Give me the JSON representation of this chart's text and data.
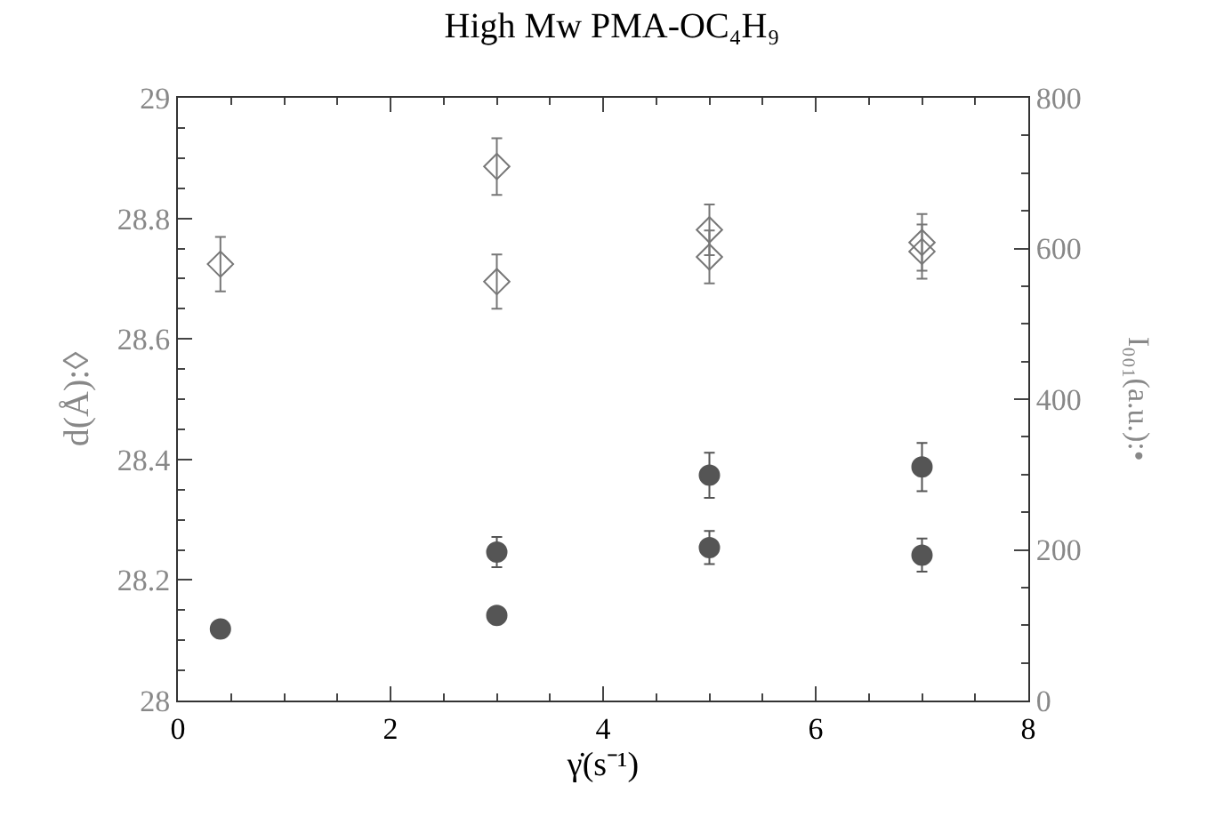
{
  "chart_data": {
    "type": "scatter",
    "title": "High Mw PMA-OC₄H₉",
    "xlabel": "γ̇(s⁻¹)",
    "ylabel": "d(Å):◊",
    "y2label": "I₀₀₁(a.u.):•",
    "series": [
      {
        "color": "#777777",
        "marker": "diamond",
        "x": [
          0.4,
          3,
          3,
          5,
          5,
          7,
          7
        ],
        "values": [
          28.724,
          28.886,
          28.695,
          28.781,
          28.736,
          28.76,
          28.745
        ],
        "errors": [
          0.045,
          0.047,
          0.045,
          0.042,
          0.044,
          0.047,
          0.045
        ]
      },
      {
        "color": "#555555",
        "marker": "circle",
        "axis": "y2",
        "x": [
          0.4,
          3,
          3,
          5,
          5,
          7,
          7
        ],
        "values": [
          95,
          197,
          113,
          299,
          203,
          310,
          193
        ],
        "errors": [
          null,
          20,
          null,
          30,
          22,
          32,
          22
        ]
      }
    ],
    "xlim": [
      0,
      8
    ],
    "xticks": [
      0,
      2,
      4,
      6,
      8
    ],
    "ylim": [
      28,
      29
    ],
    "yticks": [
      28,
      28.2,
      28.4,
      28.6,
      28.8,
      29
    ],
    "y2lim": [
      0,
      800
    ],
    "y2ticks": [
      0,
      200,
      400,
      600,
      800
    ]
  }
}
